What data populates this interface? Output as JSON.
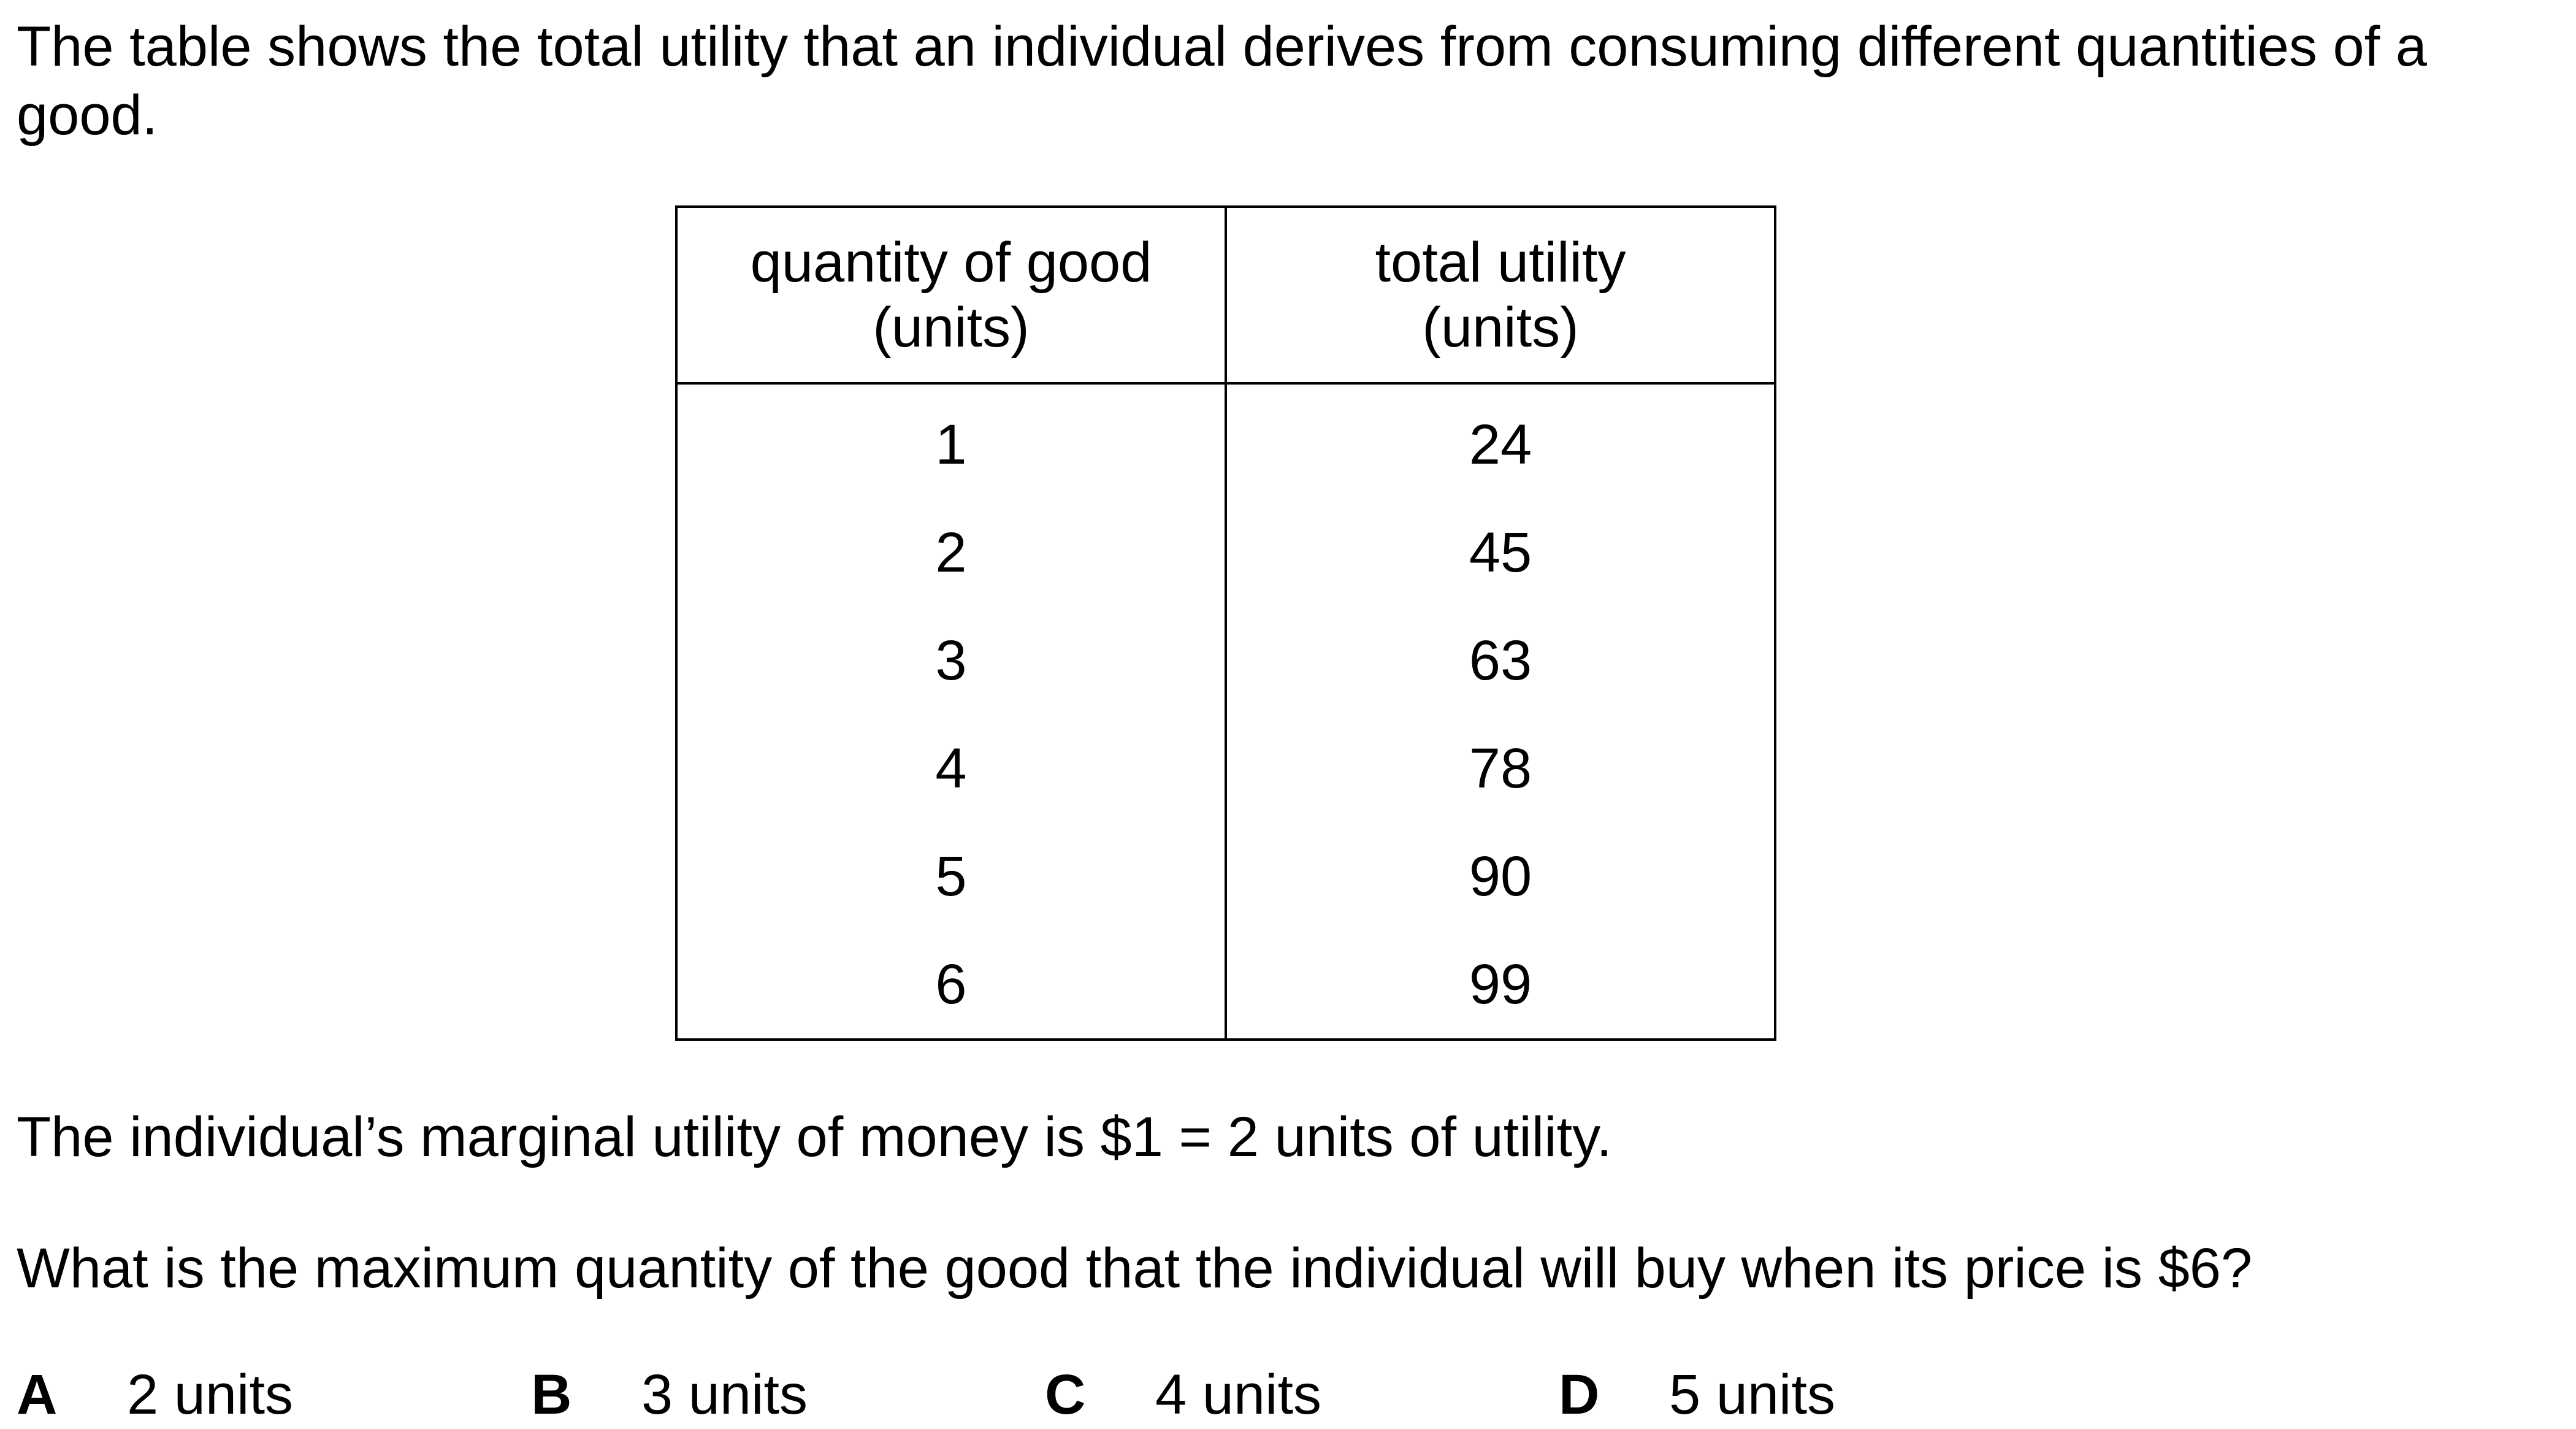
{
  "intro_text": "The table shows the total utility that an individual derives from consuming different quantities of a good.",
  "table": {
    "headers": [
      {
        "line1": "quantity of good",
        "line2": "(units)"
      },
      {
        "line1": "total utility",
        "line2": "(units)"
      }
    ],
    "rows": [
      [
        "1",
        "24"
      ],
      [
        "2",
        "45"
      ],
      [
        "3",
        "63"
      ],
      [
        "4",
        "78"
      ],
      [
        "5",
        "90"
      ],
      [
        "6",
        "99"
      ]
    ]
  },
  "statement": "The individual’s marginal utility of money is $1 = 2 units of utility.",
  "question": "What is the maximum quantity of the good that the individual will buy when its price is $6?",
  "options": [
    {
      "letter": "A",
      "text": "2 units"
    },
    {
      "letter": "B",
      "text": "3 units"
    },
    {
      "letter": "C",
      "text": "4 units"
    },
    {
      "letter": "D",
      "text": "5 units"
    }
  ]
}
